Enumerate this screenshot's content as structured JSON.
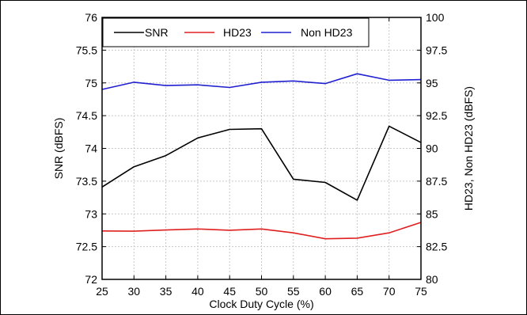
{
  "chart_data": {
    "type": "line",
    "title": "",
    "xlabel": "Clock Duty Cycle (%)",
    "ylabel_left": "SNR (dBFS)",
    "ylabel_right": "HD23, Non HD23 (dBFS)",
    "xlim": [
      25,
      75
    ],
    "ylim_left": [
      72,
      76
    ],
    "ylim_right": [
      80,
      100
    ],
    "grid": true,
    "legend_position": "top",
    "x": [
      25,
      30,
      35,
      40,
      45,
      50,
      55,
      60,
      65,
      70,
      75
    ],
    "x_ticks": [
      "25",
      "30",
      "35",
      "40",
      "45",
      "50",
      "55",
      "60",
      "65",
      "70",
      "75"
    ],
    "y_ticks_left": [
      "72",
      "72.5",
      "73",
      "73.5",
      "74",
      "74.5",
      "75",
      "75.5",
      "76"
    ],
    "y_ticks_right": [
      "80",
      "82.5",
      "85",
      "87.5",
      "90",
      "92.5",
      "95",
      "97.5",
      "100"
    ],
    "series": [
      {
        "name": "SNR",
        "axis": "left",
        "color": "#000000",
        "values": [
          73.41,
          73.72,
          73.89,
          74.16,
          74.29,
          74.3,
          73.53,
          73.48,
          73.21,
          74.34,
          74.09
        ]
      },
      {
        "name": "HD23",
        "axis": "right",
        "color": "#e02020",
        "values": [
          83.7,
          83.68,
          83.77,
          83.85,
          83.75,
          83.85,
          83.55,
          83.1,
          83.15,
          83.55,
          84.35
        ]
      },
      {
        "name": "Non HD23",
        "axis": "right",
        "color": "#2020d0",
        "values": [
          94.5,
          95.05,
          94.8,
          94.85,
          94.65,
          95.05,
          95.15,
          94.95,
          95.7,
          95.2,
          95.25
        ]
      }
    ]
  }
}
